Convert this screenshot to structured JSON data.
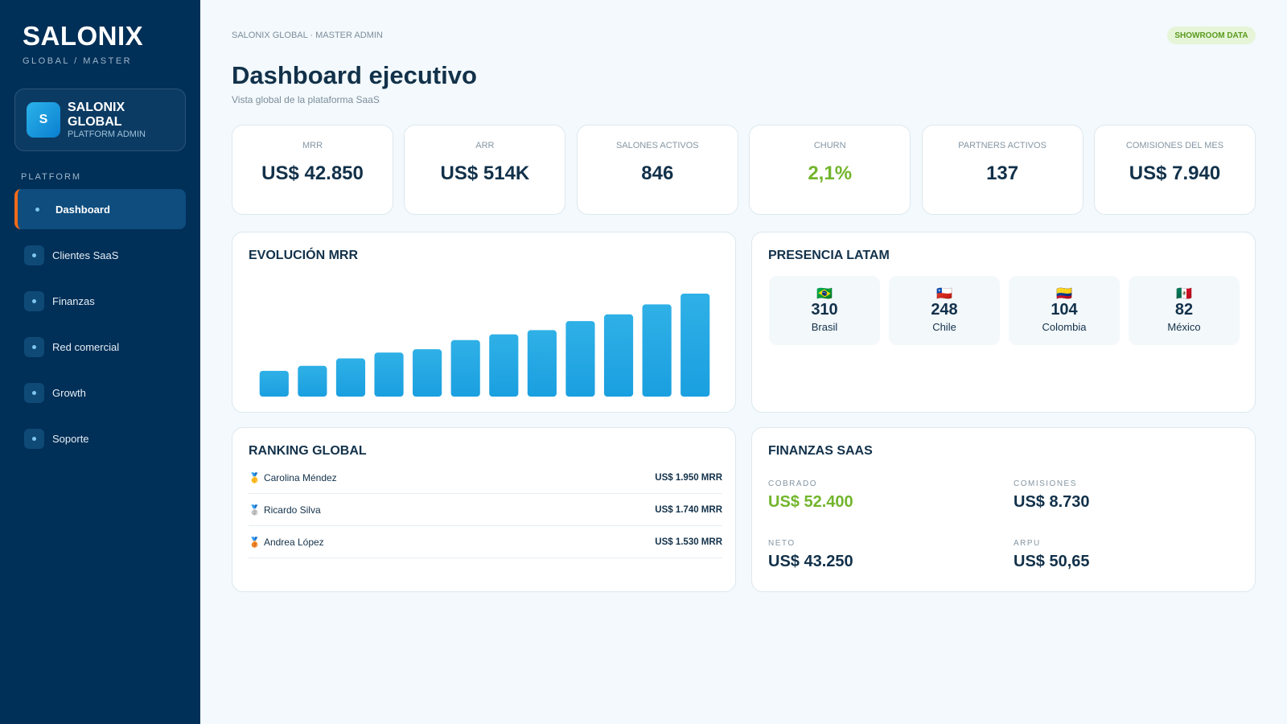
{
  "sidebar": {
    "brand": "SALONIX",
    "brand_sub": "GLOBAL / MASTER",
    "account": {
      "avatar": "S",
      "name": "SALONIX GLOBAL",
      "role": "PLATFORM ADMIN"
    },
    "section": "PLATFORM",
    "nav": [
      "Dashboard",
      "Clientes SaaS",
      "Finanzas",
      "Red comercial",
      "Growth",
      "Soporte"
    ]
  },
  "header": {
    "breadcrumb": "SALONIX GLOBAL · MASTER ADMIN",
    "badge": "SHOWROOM DATA",
    "title": "Dashboard ejecutivo",
    "subtitle": "Vista global de la plataforma SaaS"
  },
  "kpis": [
    {
      "label": "MRR",
      "value": "US$ 42.850"
    },
    {
      "label": "ARR",
      "value": "US$ 514K"
    },
    {
      "label": "SALONES ACTIVOS",
      "value": "846"
    },
    {
      "label": "CHURN",
      "value": "2,1%"
    },
    {
      "label": "PARTNERS ACTIVOS",
      "value": "137"
    },
    {
      "label": "COMISIONES DEL MES",
      "value": "US$ 7.940"
    }
  ],
  "mrr_chart": {
    "type": "bar",
    "title": "EVOLUCIÓN MRR",
    "values": [
      31,
      37,
      46,
      53,
      57,
      68,
      75,
      80,
      91,
      99,
      111,
      124
    ],
    "color": "#1a9fe0"
  },
  "latam": {
    "title": "PRESENCIA LATAM",
    "countries": [
      {
        "flag": "🇧🇷",
        "count": "310",
        "name": "Brasil"
      },
      {
        "flag": "🇨🇱",
        "count": "248",
        "name": "Chile"
      },
      {
        "flag": "🇨🇴",
        "count": "104",
        "name": "Colombia"
      },
      {
        "flag": "🇲🇽",
        "count": "82",
        "name": "México"
      }
    ]
  },
  "ranking": {
    "title": "RANKING GLOBAL",
    "rows": [
      {
        "medal": "🥇",
        "name": "Carolina Méndez",
        "value": "US$ 1.950 MRR"
      },
      {
        "medal": "🥈",
        "name": "Ricardo Silva",
        "value": "US$ 1.740 MRR"
      },
      {
        "medal": "🥉",
        "name": "Andrea López",
        "value": "US$ 1.530 MRR"
      }
    ]
  },
  "finance": {
    "title": "FINANZAS SAAS",
    "items": [
      {
        "label": "COBRADO",
        "value": "US$ 52.400"
      },
      {
        "label": "COMISIONES",
        "value": "US$ 8.730"
      },
      {
        "label": "NETO",
        "value": "US$ 43.250"
      },
      {
        "label": "ARPU",
        "value": "US$ 50,65"
      }
    ]
  }
}
